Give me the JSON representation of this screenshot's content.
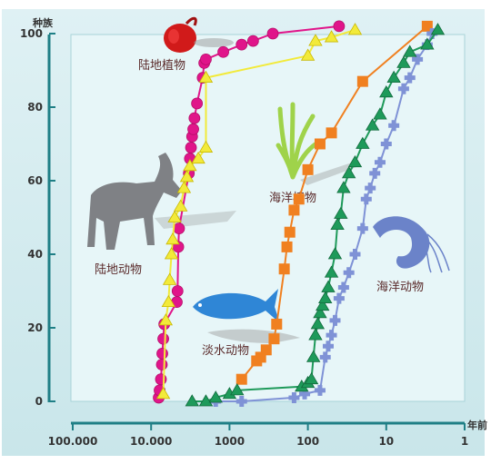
{
  "chart_data": {
    "type": "line",
    "ylabel": "种族",
    "xlabel": "年前",
    "x_scale": "log",
    "x_reversed": true,
    "xlim": [
      100000,
      1
    ],
    "ylim": [
      0,
      100
    ],
    "x_ticks": [
      100000,
      10000,
      1000,
      100,
      10,
      1
    ],
    "x_tick_labels": [
      "100.000",
      "10.000",
      "1000",
      "100",
      "10",
      "1"
    ],
    "y_ticks": [
      0,
      20,
      40,
      60,
      80,
      100
    ],
    "y_tick_labels": [
      "0",
      "20",
      "40",
      "60",
      "80",
      "100"
    ],
    "grid": false,
    "annotations": [
      {
        "text": "陆地植物",
        "target": "land-plants"
      },
      {
        "text": "海洋植物",
        "target": "marine-plants"
      },
      {
        "text": "陆地动物",
        "target": "land-animals"
      },
      {
        "text": "海洋动物",
        "target": "marine-animals"
      },
      {
        "text": "淡水动物",
        "target": "freshwater-animals"
      }
    ],
    "series": [
      {
        "name": "陆地植物",
        "color": "#e0158a",
        "marker": "circle",
        "points": [
          [
            8000,
            1
          ],
          [
            7800,
            3
          ],
          [
            7500,
            6
          ],
          [
            7300,
            10
          ],
          [
            7200,
            13
          ],
          [
            7000,
            17
          ],
          [
            6800,
            21
          ],
          [
            4700,
            27
          ],
          [
            4600,
            30
          ],
          [
            4500,
            42
          ],
          [
            4400,
            47
          ],
          [
            3300,
            62
          ],
          [
            3200,
            66
          ],
          [
            3100,
            69
          ],
          [
            3000,
            72
          ],
          [
            2900,
            74
          ],
          [
            2800,
            77
          ],
          [
            2600,
            81
          ],
          [
            2200,
            88
          ],
          [
            2100,
            92
          ],
          [
            2000,
            93
          ],
          [
            1200,
            95
          ],
          [
            700,
            97
          ],
          [
            500,
            98
          ],
          [
            280,
            100
          ],
          [
            40,
            102
          ]
        ]
      },
      {
        "name": "陆地动物",
        "color": "#f2ea3a",
        "marker": "triangle",
        "points": [
          [
            7000,
            2
          ],
          [
            6500,
            22
          ],
          [
            6000,
            27
          ],
          [
            5800,
            33
          ],
          [
            5500,
            40
          ],
          [
            5300,
            44
          ],
          [
            5000,
            50
          ],
          [
            4200,
            53
          ],
          [
            3800,
            58
          ],
          [
            3500,
            61
          ],
          [
            3200,
            64
          ],
          [
            2500,
            66
          ],
          [
            2000,
            69
          ],
          [
            2000,
            88
          ],
          [
            100,
            94
          ],
          [
            80,
            98
          ],
          [
            50,
            99
          ],
          [
            25,
            101
          ]
        ]
      },
      {
        "name": "海洋植物",
        "color": "#f08020",
        "marker": "square",
        "points": [
          [
            700,
            6
          ],
          [
            450,
            11
          ],
          [
            400,
            12
          ],
          [
            340,
            14
          ],
          [
            270,
            17
          ],
          [
            250,
            21
          ],
          [
            200,
            36
          ],
          [
            185,
            42
          ],
          [
            170,
            46
          ],
          [
            150,
            52
          ],
          [
            130,
            55
          ],
          [
            100,
            63
          ],
          [
            70,
            70
          ],
          [
            50,
            73
          ],
          [
            20,
            87
          ],
          [
            3,
            102
          ]
        ]
      },
      {
        "name": "海洋动物",
        "color": "#7f92d6",
        "marker": "plus",
        "points": [
          [
            1500,
            0
          ],
          [
            700,
            0
          ],
          [
            150,
            1
          ],
          [
            110,
            2
          ],
          [
            70,
            3
          ],
          [
            60,
            12
          ],
          [
            55,
            15
          ],
          [
            50,
            18
          ],
          [
            45,
            22
          ],
          [
            40,
            28
          ],
          [
            35,
            31
          ],
          [
            30,
            35
          ],
          [
            25,
            40
          ],
          [
            20,
            47
          ],
          [
            18,
            55
          ],
          [
            16,
            58
          ],
          [
            14,
            62
          ],
          [
            12,
            65
          ],
          [
            10,
            70
          ],
          [
            8,
            75
          ],
          [
            6,
            85
          ],
          [
            5,
            88
          ],
          [
            4,
            93
          ],
          [
            3,
            97
          ],
          [
            2.6,
            100
          ]
        ]
      },
      {
        "name": "淡水动物",
        "color": "#1e9a5a",
        "marker": "triangle",
        "points": [
          [
            3000,
            0
          ],
          [
            2000,
            0
          ],
          [
            1500,
            1
          ],
          [
            1000,
            2
          ],
          [
            800,
            3
          ],
          [
            120,
            4
          ],
          [
            100,
            5
          ],
          [
            90,
            6
          ],
          [
            85,
            12
          ],
          [
            80,
            18
          ],
          [
            75,
            21
          ],
          [
            70,
            24
          ],
          [
            65,
            26
          ],
          [
            60,
            28
          ],
          [
            55,
            31
          ],
          [
            50,
            35
          ],
          [
            45,
            40
          ],
          [
            42,
            48
          ],
          [
            38,
            51
          ],
          [
            35,
            58
          ],
          [
            30,
            62
          ],
          [
            25,
            65
          ],
          [
            20,
            70
          ],
          [
            15,
            75
          ],
          [
            12,
            78
          ],
          [
            10,
            84
          ],
          [
            8,
            88
          ],
          [
            6,
            92
          ],
          [
            5,
            95
          ],
          [
            3,
            97
          ],
          [
            2.2,
            101
          ]
        ]
      }
    ]
  }
}
